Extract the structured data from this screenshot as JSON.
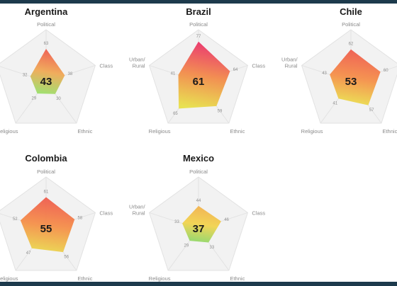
{
  "chart_data": [
    {
      "type": "radar",
      "title": "Argentina",
      "score": 43,
      "axes": [
        {
          "label": "Political",
          "value": 63
        },
        {
          "label": "Class",
          "value": 38
        },
        {
          "label": "Ethnic",
          "value": 30
        },
        {
          "label": "Religious",
          "value": 29
        },
        {
          "label": "",
          "value": 32
        }
      ],
      "colors": [
        "#ef5a4e",
        "#f0a955",
        "#9be06a"
      ]
    },
    {
      "type": "radar",
      "title": "Brazil",
      "score": 61,
      "axes": [
        {
          "label": "Political",
          "value": 77
        },
        {
          "label": "Class",
          "value": 64
        },
        {
          "label": "Ethnic",
          "value": 59
        },
        {
          "label": "Religious",
          "value": 65
        },
        {
          "label": "Urban/ Rural",
          "value": 41
        }
      ],
      "colors": [
        "#ea2f6a",
        "#f28a4a",
        "#e8e04a"
      ]
    },
    {
      "type": "radar",
      "title": "Chile",
      "score": 53,
      "axes": [
        {
          "label": "Political",
          "value": 62
        },
        {
          "label": "Class",
          "value": 60
        },
        {
          "label": "Ethnic",
          "value": 57
        },
        {
          "label": "Religious",
          "value": 41
        },
        {
          "label": "Urban/ Rural",
          "value": 43
        }
      ],
      "colors": [
        "#ef5a4e",
        "#f58f49",
        "#ebe24e"
      ]
    },
    {
      "type": "radar",
      "title": "Colombia",
      "score": 55,
      "axes": [
        {
          "label": "Political",
          "value": 61
        },
        {
          "label": "Class",
          "value": 58
        },
        {
          "label": "Ethnic",
          "value": 56
        },
        {
          "label": "Religious",
          "value": 47
        },
        {
          "label": "",
          "value": 52
        }
      ],
      "colors": [
        "#ef5a4e",
        "#f58f49",
        "#ebd84e"
      ]
    },
    {
      "type": "radar",
      "title": "Mexico",
      "score": 37,
      "axes": [
        {
          "label": "Political",
          "value": 44
        },
        {
          "label": "Class",
          "value": 46
        },
        {
          "label": "Ethnic",
          "value": 33
        },
        {
          "label": "Religious",
          "value": 29
        },
        {
          "label": "Urban/ Rural",
          "value": 33
        }
      ],
      "colors": [
        "#f2b14d",
        "#f2d34e",
        "#8fd86a"
      ]
    }
  ]
}
